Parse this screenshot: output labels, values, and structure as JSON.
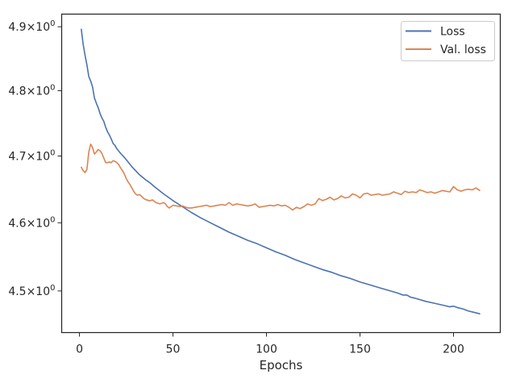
{
  "chart_data": {
    "type": "line",
    "title": "",
    "xlabel": "Epochs",
    "ylabel": "",
    "xlim": [
      -9.5,
      225
    ],
    "ylim": [
      4.44,
      4.92
    ],
    "yscale": "log",
    "grid": false,
    "legend_position": "top-right",
    "x_ticks": [
      {
        "value": 0,
        "label": "0"
      },
      {
        "value": 50,
        "label": "50"
      },
      {
        "value": 100,
        "label": "100"
      },
      {
        "value": 150,
        "label": "150"
      },
      {
        "value": 200,
        "label": "200"
      }
    ],
    "y_ticks": [
      {
        "value": 4.5,
        "mantissa": "4.5",
        "sep": "×",
        "base": "10",
        "exp": "0"
      },
      {
        "value": 4.6,
        "mantissa": "4.6",
        "sep": "×",
        "base": "10",
        "exp": "0"
      },
      {
        "value": 4.7,
        "mantissa": "4.7",
        "sep": "×",
        "base": "10",
        "exp": "0"
      },
      {
        "value": 4.8,
        "mantissa": "4.8",
        "sep": "×",
        "base": "10",
        "exp": "0"
      },
      {
        "value": 4.9,
        "mantissa": "4.9",
        "sep": "×",
        "base": "10",
        "exp": "0"
      }
    ],
    "series": [
      {
        "name": "Loss",
        "color": "#4c72b0",
        "points": [
          [
            1,
            4.896
          ],
          [
            2,
            4.872
          ],
          [
            3,
            4.855
          ],
          [
            4,
            4.84
          ],
          [
            5,
            4.822
          ],
          [
            6,
            4.815
          ],
          [
            7,
            4.806
          ],
          [
            8,
            4.789
          ],
          [
            9,
            4.781
          ],
          [
            10,
            4.774
          ],
          [
            11,
            4.765
          ],
          [
            12,
            4.758
          ],
          [
            13,
            4.753
          ],
          [
            14,
            4.744
          ],
          [
            15,
            4.737
          ],
          [
            16,
            4.732
          ],
          [
            17,
            4.726
          ],
          [
            18,
            4.719
          ],
          [
            19,
            4.716
          ],
          [
            20,
            4.711
          ],
          [
            22,
            4.704
          ],
          [
            24,
            4.698
          ],
          [
            26,
            4.691
          ],
          [
            28,
            4.684
          ],
          [
            30,
            4.678
          ],
          [
            32,
            4.672
          ],
          [
            35,
            4.665
          ],
          [
            38,
            4.659
          ],
          [
            40,
            4.654
          ],
          [
            45,
            4.643
          ],
          [
            50,
            4.633
          ],
          [
            55,
            4.624
          ],
          [
            60,
            4.615
          ],
          [
            65,
            4.607
          ],
          [
            70,
            4.6
          ],
          [
            75,
            4.593
          ],
          [
            80,
            4.586
          ],
          [
            85,
            4.58
          ],
          [
            90,
            4.574
          ],
          [
            95,
            4.569
          ],
          [
            100,
            4.563
          ],
          [
            105,
            4.557
          ],
          [
            110,
            4.552
          ],
          [
            115,
            4.546
          ],
          [
            120,
            4.541
          ],
          [
            125,
            4.536
          ],
          [
            130,
            4.531
          ],
          [
            135,
            4.527
          ],
          [
            140,
            4.522
          ],
          [
            145,
            4.518
          ],
          [
            150,
            4.513
          ],
          [
            155,
            4.509
          ],
          [
            160,
            4.505
          ],
          [
            165,
            4.501
          ],
          [
            170,
            4.497
          ],
          [
            173,
            4.494
          ],
          [
            175,
            4.494
          ],
          [
            177,
            4.491
          ],
          [
            180,
            4.489
          ],
          [
            185,
            4.485
          ],
          [
            190,
            4.482
          ],
          [
            195,
            4.479
          ],
          [
            198,
            4.477
          ],
          [
            200,
            4.478
          ],
          [
            202,
            4.476
          ],
          [
            205,
            4.474
          ],
          [
            208,
            4.471
          ],
          [
            211,
            4.469
          ],
          [
            214,
            4.467
          ]
        ]
      },
      {
        "name": "Val. loss",
        "color": "#dd8452",
        "points": [
          [
            1,
            4.683
          ],
          [
            2,
            4.678
          ],
          [
            3,
            4.675
          ],
          [
            4,
            4.68
          ],
          [
            5,
            4.706
          ],
          [
            6,
            4.718
          ],
          [
            7,
            4.713
          ],
          [
            8,
            4.703
          ],
          [
            9,
            4.706
          ],
          [
            10,
            4.71
          ],
          [
            11,
            4.708
          ],
          [
            12,
            4.704
          ],
          [
            13,
            4.697
          ],
          [
            14,
            4.69
          ],
          [
            15,
            4.69
          ],
          [
            16,
            4.691
          ],
          [
            17,
            4.69
          ],
          [
            18,
            4.693
          ],
          [
            19,
            4.692
          ],
          [
            20,
            4.69
          ],
          [
            21,
            4.687
          ],
          [
            22,
            4.682
          ],
          [
            23,
            4.678
          ],
          [
            24,
            4.673
          ],
          [
            25,
            4.666
          ],
          [
            26,
            4.661
          ],
          [
            27,
            4.657
          ],
          [
            28,
            4.652
          ],
          [
            29,
            4.647
          ],
          [
            30,
            4.643
          ],
          [
            31,
            4.641
          ],
          [
            32,
            4.642
          ],
          [
            33,
            4.64
          ],
          [
            34,
            4.637
          ],
          [
            35,
            4.635
          ],
          [
            36,
            4.634
          ],
          [
            37,
            4.633
          ],
          [
            38,
            4.633
          ],
          [
            39,
            4.634
          ],
          [
            40,
            4.632
          ],
          [
            41,
            4.63
          ],
          [
            42,
            4.629
          ],
          [
            43,
            4.628
          ],
          [
            44,
            4.629
          ],
          [
            45,
            4.63
          ],
          [
            46,
            4.628
          ],
          [
            47,
            4.624
          ],
          [
            48,
            4.622
          ],
          [
            49,
            4.624
          ],
          [
            50,
            4.626
          ],
          [
            52,
            4.625
          ],
          [
            54,
            4.624
          ],
          [
            55,
            4.625
          ],
          [
            56,
            4.624
          ],
          [
            58,
            4.622
          ],
          [
            60,
            4.622
          ],
          [
            62,
            4.623
          ],
          [
            64,
            4.624
          ],
          [
            66,
            4.625
          ],
          [
            68,
            4.626
          ],
          [
            70,
            4.624
          ],
          [
            72,
            4.625
          ],
          [
            74,
            4.626
          ],
          [
            76,
            4.627
          ],
          [
            78,
            4.626
          ],
          [
            80,
            4.63
          ],
          [
            82,
            4.626
          ],
          [
            84,
            4.628
          ],
          [
            86,
            4.627
          ],
          [
            88,
            4.626
          ],
          [
            90,
            4.625
          ],
          [
            92,
            4.626
          ],
          [
            94,
            4.628
          ],
          [
            96,
            4.623
          ],
          [
            98,
            4.624
          ],
          [
            100,
            4.625
          ],
          [
            102,
            4.626
          ],
          [
            104,
            4.625
          ],
          [
            106,
            4.627
          ],
          [
            108,
            4.625
          ],
          [
            110,
            4.626
          ],
          [
            112,
            4.623
          ],
          [
            114,
            4.619
          ],
          [
            116,
            4.623
          ],
          [
            118,
            4.621
          ],
          [
            120,
            4.624
          ],
          [
            122,
            4.628
          ],
          [
            124,
            4.626
          ],
          [
            126,
            4.628
          ],
          [
            128,
            4.636
          ],
          [
            130,
            4.633
          ],
          [
            132,
            4.635
          ],
          [
            134,
            4.638
          ],
          [
            136,
            4.634
          ],
          [
            138,
            4.636
          ],
          [
            140,
            4.64
          ],
          [
            142,
            4.637
          ],
          [
            144,
            4.638
          ],
          [
            146,
            4.643
          ],
          [
            148,
            4.641
          ],
          [
            150,
            4.637
          ],
          [
            152,
            4.643
          ],
          [
            154,
            4.644
          ],
          [
            156,
            4.641
          ],
          [
            158,
            4.642
          ],
          [
            160,
            4.643
          ],
          [
            162,
            4.641
          ],
          [
            164,
            4.642
          ],
          [
            166,
            4.643
          ],
          [
            168,
            4.646
          ],
          [
            170,
            4.644
          ],
          [
            172,
            4.642
          ],
          [
            174,
            4.647
          ],
          [
            176,
            4.645
          ],
          [
            178,
            4.646
          ],
          [
            180,
            4.645
          ],
          [
            182,
            4.649
          ],
          [
            184,
            4.647
          ],
          [
            186,
            4.645
          ],
          [
            188,
            4.646
          ],
          [
            190,
            4.644
          ],
          [
            192,
            4.646
          ],
          [
            194,
            4.648
          ],
          [
            196,
            4.647
          ],
          [
            198,
            4.646
          ],
          [
            200,
            4.654
          ],
          [
            202,
            4.649
          ],
          [
            204,
            4.647
          ],
          [
            206,
            4.649
          ],
          [
            208,
            4.65
          ],
          [
            210,
            4.649
          ],
          [
            212,
            4.652
          ],
          [
            214,
            4.648
          ]
        ]
      }
    ]
  }
}
